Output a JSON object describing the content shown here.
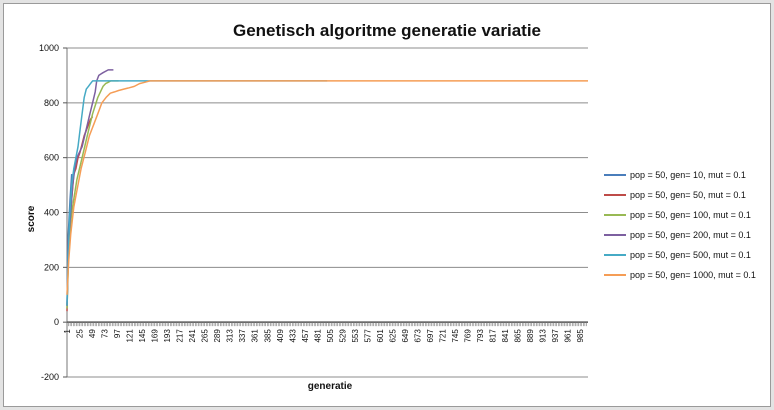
{
  "chart_data": {
    "type": "line",
    "title": "Genetisch algoritme generatie variatie",
    "xlabel": "generatie",
    "ylabel": "score",
    "ylim": [
      -200,
      1000
    ],
    "yticks": [
      -200,
      0,
      200,
      400,
      600,
      800,
      1000
    ],
    "xlim": [
      1,
      1000
    ],
    "xticks": [
      1,
      25,
      49,
      73,
      97,
      121,
      145,
      169,
      193,
      217,
      241,
      265,
      289,
      313,
      337,
      361,
      385,
      409,
      433,
      457,
      481,
      505,
      529,
      553,
      577,
      601,
      625,
      649,
      673,
      697,
      721,
      745,
      769,
      793,
      817,
      841,
      865,
      889,
      913,
      937,
      961,
      985
    ],
    "grid": "horizontal",
    "legend_position": "right",
    "series": [
      {
        "name": "pop = 50, gen= 10, mut = 0.1",
        "color": "#4a7ebb",
        "points": [
          [
            1,
            60
          ],
          [
            3,
            300
          ],
          [
            5,
            380
          ],
          [
            7,
            450
          ],
          [
            10,
            540
          ]
        ]
      },
      {
        "name": "pop = 50, gen= 50, mut = 0.1",
        "color": "#be4b48",
        "points": [
          [
            1,
            40
          ],
          [
            4,
            300
          ],
          [
            7,
            380
          ],
          [
            10,
            450
          ],
          [
            14,
            540
          ],
          [
            18,
            560
          ],
          [
            22,
            600
          ],
          [
            26,
            620
          ],
          [
            30,
            650
          ],
          [
            34,
            680
          ],
          [
            38,
            700
          ],
          [
            42,
            720
          ],
          [
            46,
            740
          ],
          [
            50,
            750
          ]
        ]
      },
      {
        "name": "pop = 50, gen= 100, mut = 0.1",
        "color": "#98b954",
        "points": [
          [
            1,
            50
          ],
          [
            5,
            300
          ],
          [
            10,
            400
          ],
          [
            15,
            460
          ],
          [
            20,
            520
          ],
          [
            25,
            560
          ],
          [
            30,
            600
          ],
          [
            35,
            640
          ],
          [
            40,
            680
          ],
          [
            45,
            720
          ],
          [
            50,
            760
          ],
          [
            55,
            790
          ],
          [
            60,
            820
          ],
          [
            65,
            840
          ],
          [
            70,
            860
          ],
          [
            75,
            870
          ],
          [
            80,
            875
          ],
          [
            85,
            880
          ],
          [
            90,
            880
          ],
          [
            100,
            880
          ]
        ]
      },
      {
        "name": "pop = 50, gen= 200, mut = 0.1",
        "color": "#7d60a0",
        "points": [
          [
            1,
            60
          ],
          [
            4,
            300
          ],
          [
            8,
            400
          ],
          [
            12,
            500
          ],
          [
            16,
            560
          ],
          [
            20,
            600
          ],
          [
            25,
            620
          ],
          [
            30,
            640
          ],
          [
            35,
            680
          ],
          [
            40,
            720
          ],
          [
            45,
            760
          ],
          [
            50,
            800
          ],
          [
            55,
            840
          ],
          [
            58,
            880
          ],
          [
            62,
            900
          ],
          [
            66,
            905
          ],
          [
            70,
            910
          ],
          [
            80,
            920
          ],
          [
            90,
            920
          ]
        ]
      },
      {
        "name": "pop = 50, gen= 500, mut = 0.1",
        "color": "#46aac5",
        "points": [
          [
            1,
            60
          ],
          [
            3,
            220
          ],
          [
            6,
            380
          ],
          [
            10,
            500
          ],
          [
            14,
            560
          ],
          [
            18,
            600
          ],
          [
            22,
            640
          ],
          [
            26,
            700
          ],
          [
            30,
            760
          ],
          [
            34,
            820
          ],
          [
            38,
            850
          ],
          [
            42,
            860
          ],
          [
            46,
            870
          ],
          [
            50,
            880
          ],
          [
            60,
            880
          ],
          [
            100,
            880
          ],
          [
            200,
            880
          ],
          [
            300,
            880
          ],
          [
            400,
            880
          ],
          [
            500,
            880
          ]
        ]
      },
      {
        "name": "pop = 50, gen= 1000, mut = 0.1",
        "color": "#f59d56",
        "points": [
          [
            1,
            100
          ],
          [
            4,
            220
          ],
          [
            8,
            320
          ],
          [
            14,
            420
          ],
          [
            20,
            480
          ],
          [
            28,
            560
          ],
          [
            36,
            620
          ],
          [
            44,
            680
          ],
          [
            52,
            720
          ],
          [
            60,
            760
          ],
          [
            68,
            800
          ],
          [
            76,
            820
          ],
          [
            84,
            835
          ],
          [
            92,
            840
          ],
          [
            100,
            845
          ],
          [
            110,
            850
          ],
          [
            120,
            855
          ],
          [
            130,
            860
          ],
          [
            140,
            870
          ],
          [
            150,
            875
          ],
          [
            160,
            880
          ],
          [
            200,
            880
          ],
          [
            400,
            880
          ],
          [
            600,
            880
          ],
          [
            800,
            880
          ],
          [
            1000,
            880
          ]
        ]
      }
    ]
  }
}
